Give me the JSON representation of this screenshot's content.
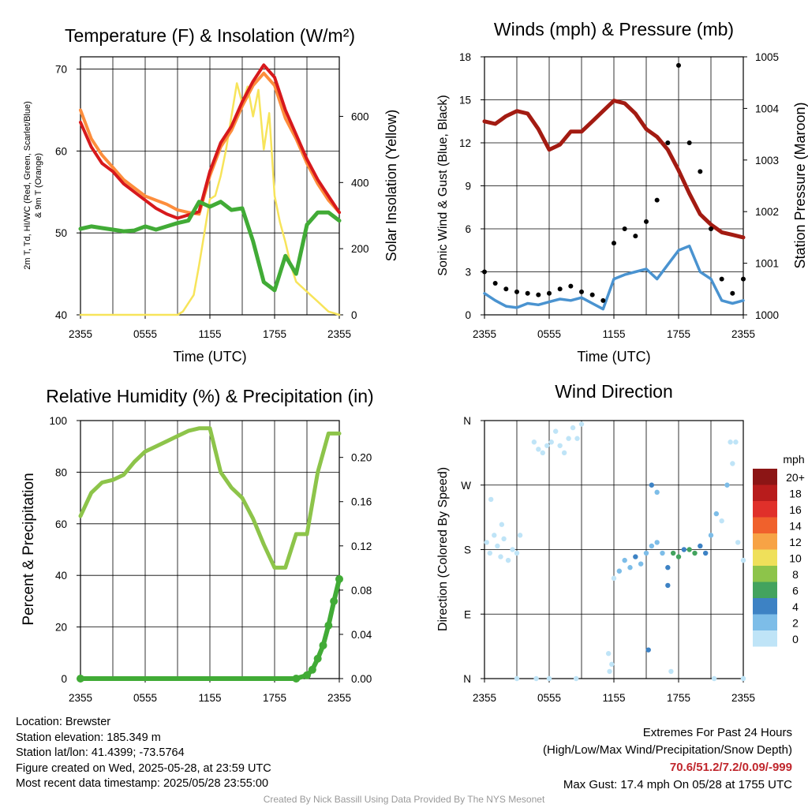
{
  "colors": {
    "red": "#d7191c",
    "orange": "#fd8d3c",
    "green": "#41ab36",
    "yellow": "#f7e45a",
    "maroon": "#a31b12",
    "blue": "#4a93d0",
    "black": "#000000",
    "rh_green": "#8dc44a",
    "precip_green": "#41ab36"
  },
  "panels": {
    "temp": {
      "title": "Temperature (F) & Insolation (W/m²)",
      "ylabel_lines": [
        "2m T, Td, HI/WC (Red, Green, Scarlet/Blue)",
        "& 9m T (Orange)"
      ],
      "yrlabel": "Solar Insolation (Yellow)",
      "xlabel": "Time (UTC)",
      "yticks": [
        "40",
        "50",
        "60",
        "70"
      ],
      "yrticks": [
        "0",
        "200",
        "400",
        "600"
      ],
      "xticks": [
        "2355",
        "0555",
        "1155",
        "1755",
        "2355"
      ]
    },
    "wind": {
      "title": "Winds (mph) & Pressure (mb)",
      "ylabel": "Sonic Wind & Gust (Blue, Black)",
      "yrlabel": "Station Pressure (Maroon)",
      "xlabel": "Time (UTC)",
      "yticks": [
        "0",
        "3",
        "6",
        "9",
        "12",
        "15",
        "18"
      ],
      "yrticks": [
        "1000",
        "1001",
        "1002",
        "1003",
        "1004",
        "1005"
      ],
      "xticks": [
        "2355",
        "0555",
        "1155",
        "1755",
        "2355"
      ]
    },
    "rh": {
      "title": "Relative Humidity (%) & Precipitation (in)",
      "ylabel": "Percent & Precipitation",
      "yticks": [
        "0",
        "20",
        "40",
        "60",
        "80",
        "100"
      ],
      "yrticks": [
        "0.00",
        "0.04",
        "0.08",
        "0.12",
        "0.16",
        "0.20"
      ],
      "xticks": [
        "2355",
        "0555",
        "1155",
        "1755",
        "2355"
      ]
    },
    "dir": {
      "title": "Wind Direction",
      "ylabel": "Direction (Colored By Speed)",
      "yticks": [
        "N",
        "E",
        "S",
        "W",
        "N"
      ],
      "xticks": [
        "2355",
        "0555",
        "1155",
        "1755",
        "2355"
      ],
      "legend_title": "mph",
      "legend_labels": [
        "20+",
        "18",
        "16",
        "14",
        "12",
        "10",
        "8",
        "6",
        "4",
        "2",
        "0"
      ],
      "legend_colors": [
        "#8c1515",
        "#b81c1c",
        "#e0302a",
        "#f0612c",
        "#f7a345",
        "#efe05a",
        "#8dc44a",
        "#43a35e",
        "#3d82c4",
        "#7dbde8",
        "#bfe4f7"
      ]
    }
  },
  "footer": {
    "location": "Location: Brewster",
    "elevation": "Station elevation: 185.349 m",
    "latlon": "Station lat/lon: 41.4399; -73.5764",
    "created": "Figure created on Wed, 2025-05-28, at 23:59 UTC",
    "recent": "Most recent data timestamp: 2025/05/28 23:55:00",
    "extremes_title": "Extremes For Past 24 Hours",
    "extremes_sub": "(High/Low/Max Wind/Precipitation/Snow Depth)",
    "extremes_values": "70.6/51.2/7.2/0.09/-999",
    "max_gust": "Max Gust: 17.4 mph On 05/28 at 1755 UTC",
    "credit": "Created By Nick Bassill Using Data Provided By The NYS Mesonet"
  },
  "chart_data": [
    {
      "type": "line",
      "x_unit": "hours since 2355 UTC",
      "xlim": [
        0,
        24
      ],
      "ylim": [
        40,
        71.5
      ],
      "y2lim": [
        0,
        780
      ],
      "series": [
        {
          "name": "2m T",
          "axis": "left",
          "x": [
            0,
            1,
            2,
            3,
            4,
            5,
            6,
            7,
            8,
            9,
            10,
            11,
            12,
            13,
            14,
            15,
            16,
            17,
            18,
            19,
            20,
            21,
            22,
            23,
            24
          ],
          "values": [
            63.5,
            60.5,
            58.5,
            57.5,
            56,
            55,
            54,
            53,
            52.3,
            51.8,
            52.2,
            52.6,
            57.5,
            61,
            63,
            66,
            68.5,
            70.5,
            69,
            65,
            62,
            59,
            56.5,
            54.5,
            52.5
          ]
        },
        {
          "name": "9m T",
          "axis": "left",
          "x": [
            0,
            1,
            2,
            3,
            4,
            5,
            6,
            7,
            8,
            9,
            10,
            11,
            12,
            13,
            14,
            15,
            16,
            17,
            18,
            19,
            20,
            21,
            22,
            23,
            24
          ],
          "values": [
            65,
            61.5,
            59.5,
            58,
            56.5,
            55.5,
            54.5,
            54,
            53.5,
            52.8,
            52.5,
            52.3,
            57,
            60.5,
            62.5,
            65.5,
            68,
            69.5,
            68,
            64,
            61.5,
            58.5,
            56,
            54,
            52.5
          ]
        },
        {
          "name": "Td",
          "axis": "left",
          "x": [
            0,
            1,
            2,
            3,
            4,
            5,
            6,
            7,
            8,
            9,
            10,
            11,
            12,
            13,
            14,
            15,
            16,
            17,
            18,
            19,
            20,
            21,
            22,
            23,
            24
          ],
          "values": [
            50.5,
            50.8,
            50.6,
            50.4,
            50.2,
            50.3,
            50.8,
            50.4,
            50.8,
            51.2,
            51.5,
            53.8,
            53.2,
            53.8,
            52.8,
            53,
            49,
            44,
            43,
            47.2,
            45,
            51,
            52.5,
            52.5,
            51.5
          ]
        },
        {
          "name": "Insolation",
          "axis": "right",
          "x": [
            0,
            9,
            9.5,
            10.5,
            11,
            11.5,
            12,
            12.5,
            13,
            13.5,
            14,
            14.5,
            15,
            15.5,
            16,
            16.5,
            17,
            17.5,
            18,
            18.5,
            19,
            19.5,
            20,
            21,
            22,
            23,
            24
          ],
          "values": [
            0,
            0,
            10,
            60,
            150,
            250,
            350,
            360,
            420,
            500,
            600,
            700,
            640,
            690,
            600,
            680,
            500,
            610,
            360,
            280,
            220,
            150,
            100,
            70,
            40,
            10,
            0
          ]
        }
      ]
    },
    {
      "type": "line",
      "x_unit": "hours since 2355 UTC",
      "xlim": [
        0,
        24
      ],
      "ylim": [
        0,
        18
      ],
      "y2lim": [
        1000,
        1005
      ],
      "series": [
        {
          "name": "Station Pressure",
          "axis": "right",
          "x": [
            0,
            1,
            2,
            3,
            4,
            5,
            6,
            7,
            8,
            9,
            10,
            11,
            12,
            13,
            14,
            15,
            16,
            17,
            18,
            19,
            20,
            21,
            22,
            23,
            24
          ],
          "values": [
            1003.75,
            1003.7,
            1003.85,
            1003.95,
            1003.9,
            1003.6,
            1003.2,
            1003.3,
            1003.55,
            1003.55,
            1003.75,
            1003.95,
            1004.15,
            1004.1,
            1003.9,
            1003.6,
            1003.45,
            1003.2,
            1002.8,
            1002.35,
            1001.95,
            1001.75,
            1001.6,
            1001.55,
            1001.5
          ]
        },
        {
          "name": "Sonic Wind",
          "axis": "left",
          "x": [
            0,
            1,
            2,
            3,
            4,
            5,
            6,
            7,
            8,
            9,
            10,
            11,
            12,
            13,
            14,
            15,
            16,
            17,
            18,
            19,
            20,
            21,
            22,
            23,
            24
          ],
          "values": [
            1.5,
            1,
            0.6,
            0.5,
            0.8,
            0.7,
            0.9,
            1.1,
            1,
            1.2,
            0.8,
            0.4,
            2.5,
            2.8,
            3,
            3.2,
            2.5,
            3.5,
            4.5,
            4.8,
            3,
            2.5,
            1,
            0.8,
            1
          ]
        },
        {
          "name": "Gust",
          "axis": "left",
          "x": [
            0,
            1,
            2,
            3,
            4,
            5,
            6,
            7,
            8,
            9,
            10,
            11,
            12,
            13,
            14,
            15,
            16,
            17,
            18,
            19,
            20,
            21,
            22,
            23,
            24
          ],
          "values": [
            3,
            2.2,
            1.8,
            1.6,
            1.5,
            1.4,
            1.5,
            1.8,
            2,
            1.6,
            1.4,
            1,
            5,
            6,
            5.5,
            6.5,
            8,
            12,
            17.4,
            12,
            10,
            6,
            2.5,
            1.5,
            2.5
          ]
        }
      ]
    },
    {
      "type": "line",
      "x_unit": "hours since 2355 UTC",
      "xlim": [
        0,
        24
      ],
      "ylim": [
        0,
        100
      ],
      "y2lim": [
        0,
        0.2333
      ],
      "series": [
        {
          "name": "Relative Humidity",
          "axis": "left",
          "x": [
            0,
            1,
            2,
            3,
            4,
            5,
            6,
            7,
            8,
            9,
            10,
            11,
            12,
            13,
            14,
            15,
            16,
            17,
            18,
            19,
            20,
            21,
            22,
            23,
            24
          ],
          "values": [
            63,
            72,
            76,
            77,
            79,
            84,
            88,
            90,
            92,
            94,
            96,
            97,
            97,
            80,
            74,
            70,
            62,
            52,
            43,
            43,
            56,
            56,
            80,
            95,
            95
          ]
        },
        {
          "name": "Precipitation",
          "axis": "right",
          "x": [
            0,
            20,
            21,
            21.5,
            22,
            22.5,
            23,
            23.5,
            24
          ],
          "values": [
            0,
            0,
            0.003,
            0.008,
            0.018,
            0.03,
            0.048,
            0.07,
            0.09
          ]
        }
      ]
    },
    {
      "type": "scatter",
      "x_unit": "hours since 2355 UTC",
      "xlim": [
        0,
        24
      ],
      "ylim": [
        0,
        360
      ],
      "series": [
        {
          "name": "Direction (colored by speed)",
          "points": [
            [
              0.2,
              190,
              1
            ],
            [
              0.5,
              175,
              1
            ],
            [
              0.9,
              200,
              1
            ],
            [
              1.2,
              185,
              1
            ],
            [
              1.5,
              170,
              1
            ],
            [
              1.8,
              195,
              1
            ],
            [
              2.2,
              165,
              1
            ],
            [
              2.6,
              180,
              1
            ],
            [
              3,
              175,
              1
            ],
            [
              3.3,
              200,
              1
            ],
            [
              0.6,
              250,
              1
            ],
            [
              1.6,
              215,
              1
            ],
            [
              4.6,
              330,
              1
            ],
            [
              5,
              320,
              1
            ],
            [
              5.4,
              315,
              1
            ],
            [
              5.8,
              325,
              1
            ],
            [
              6.2,
              330,
              1
            ],
            [
              6.6,
              345,
              1
            ],
            [
              7,
              325,
              1
            ],
            [
              7.4,
              315,
              1
            ],
            [
              7.8,
              335,
              1
            ],
            [
              8.2,
              350,
              1
            ],
            [
              8.6,
              335,
              1
            ],
            [
              9,
              355,
              1
            ],
            [
              3,
              0,
              1
            ],
            [
              4.8,
              0,
              1
            ],
            [
              6,
              0,
              1
            ],
            [
              8.5,
              0,
              1
            ],
            [
              11.6,
              10,
              1
            ],
            [
              11.8,
              20,
              1
            ],
            [
              11.5,
              35,
              1
            ],
            [
              12,
              140,
              1.5
            ],
            [
              12.5,
              150,
              2.5
            ],
            [
              13,
              165,
              3
            ],
            [
              13.5,
              155,
              3.5
            ],
            [
              14,
              170,
              4
            ],
            [
              14.5,
              160,
              3.5
            ],
            [
              15,
              175,
              3
            ],
            [
              15.5,
              185,
              3.5
            ],
            [
              16,
              190,
              2.5
            ],
            [
              16.5,
              175,
              3
            ],
            [
              17,
              155,
              5
            ],
            [
              17,
              130,
              4
            ],
            [
              17.5,
              175,
              7
            ],
            [
              18,
              170,
              6.5
            ],
            [
              18.5,
              180,
              5.5
            ],
            [
              19,
              180,
              7
            ],
            [
              19.5,
              175,
              6
            ],
            [
              20,
              185,
              5
            ],
            [
              20.5,
              175,
              4
            ],
            [
              21,
              200,
              2
            ],
            [
              21.5,
              230,
              2
            ],
            [
              22,
              220,
              1.5
            ],
            [
              22.5,
              270,
              2
            ],
            [
              23,
              300,
              1.5
            ],
            [
              23.5,
              190,
              1.5
            ],
            [
              24,
              165,
              1
            ],
            [
              23.3,
              330,
              1
            ],
            [
              22.8,
              330,
              1
            ],
            [
              15.5,
              270,
              4
            ],
            [
              16,
              260,
              3
            ],
            [
              15.2,
              40,
              4
            ],
            [
              17.3,
              10,
              1
            ],
            [
              21.3,
              0,
              1
            ],
            [
              24,
              0,
              1
            ]
          ]
        }
      ]
    }
  ]
}
